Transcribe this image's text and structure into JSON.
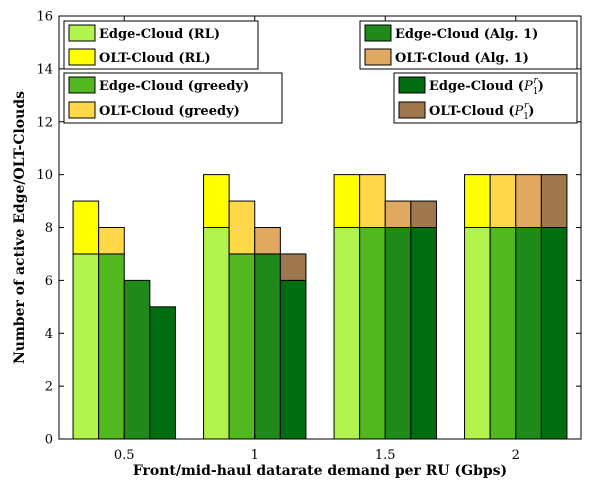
{
  "chart_data": {
    "type": "bar",
    "subtype": "grouped-stacked",
    "categories": [
      "0.5",
      "1",
      "1.5",
      "2"
    ],
    "xlabel": "Front/mid-haul datarate demand per RU (Gbps)",
    "ylabel": "Number of active Edge/OLT-Clouds",
    "ylim": [
      0,
      16
    ],
    "yticks": [
      "0",
      "2",
      "4",
      "6",
      "8",
      "10",
      "12",
      "14",
      "16"
    ],
    "grid": false,
    "methods": [
      {
        "name": "RL",
        "edge": [
          7,
          8,
          8,
          8
        ],
        "olt": [
          2,
          2,
          2,
          2
        ],
        "edge_color": "#b2f24d",
        "olt_color": "#ffff00"
      },
      {
        "name": "greedy",
        "edge": [
          7,
          7,
          8,
          8
        ],
        "olt": [
          1,
          2,
          2,
          2
        ],
        "edge_color": "#52b820",
        "olt_color": "#ffd84a"
      },
      {
        "name": "Alg. 1",
        "edge": [
          6,
          7,
          8,
          8
        ],
        "olt": [
          0,
          1,
          1,
          2
        ],
        "edge_color": "#1f8a1a",
        "olt_color": "#e0a860"
      },
      {
        "name": "P1r",
        "edge": [
          5,
          6,
          8,
          8
        ],
        "olt": [
          0,
          1,
          1,
          2
        ],
        "edge_color": "#006e10",
        "olt_color": "#a07850"
      }
    ],
    "legend": {
      "placement": "top",
      "groups": [
        [
          {
            "label": "Edge-Cloud (RL)",
            "color": "#b2f24d"
          },
          {
            "label": "OLT-Cloud (RL)",
            "color": "#ffff00"
          }
        ],
        [
          {
            "label": "Edge-Cloud (Alg. 1)",
            "color": "#1f8a1a"
          },
          {
            "label": "OLT-Cloud (Alg. 1)",
            "color": "#e0a860"
          }
        ],
        [
          {
            "label": "Edge-Cloud (greedy)",
            "color": "#52b820"
          },
          {
            "label": "OLT-Cloud (greedy)",
            "color": "#ffd84a"
          }
        ],
        [
          {
            "label": "Edge-Cloud (",
            "math": "P",
            "sub": "1",
            "sup": "r",
            "tail": ")",
            "color": "#006e10"
          },
          {
            "label": "OLT-Cloud (",
            "math": "P",
            "sub": "1",
            "sup": "r",
            "tail": ")",
            "color": "#a07850"
          }
        ]
      ]
    }
  }
}
